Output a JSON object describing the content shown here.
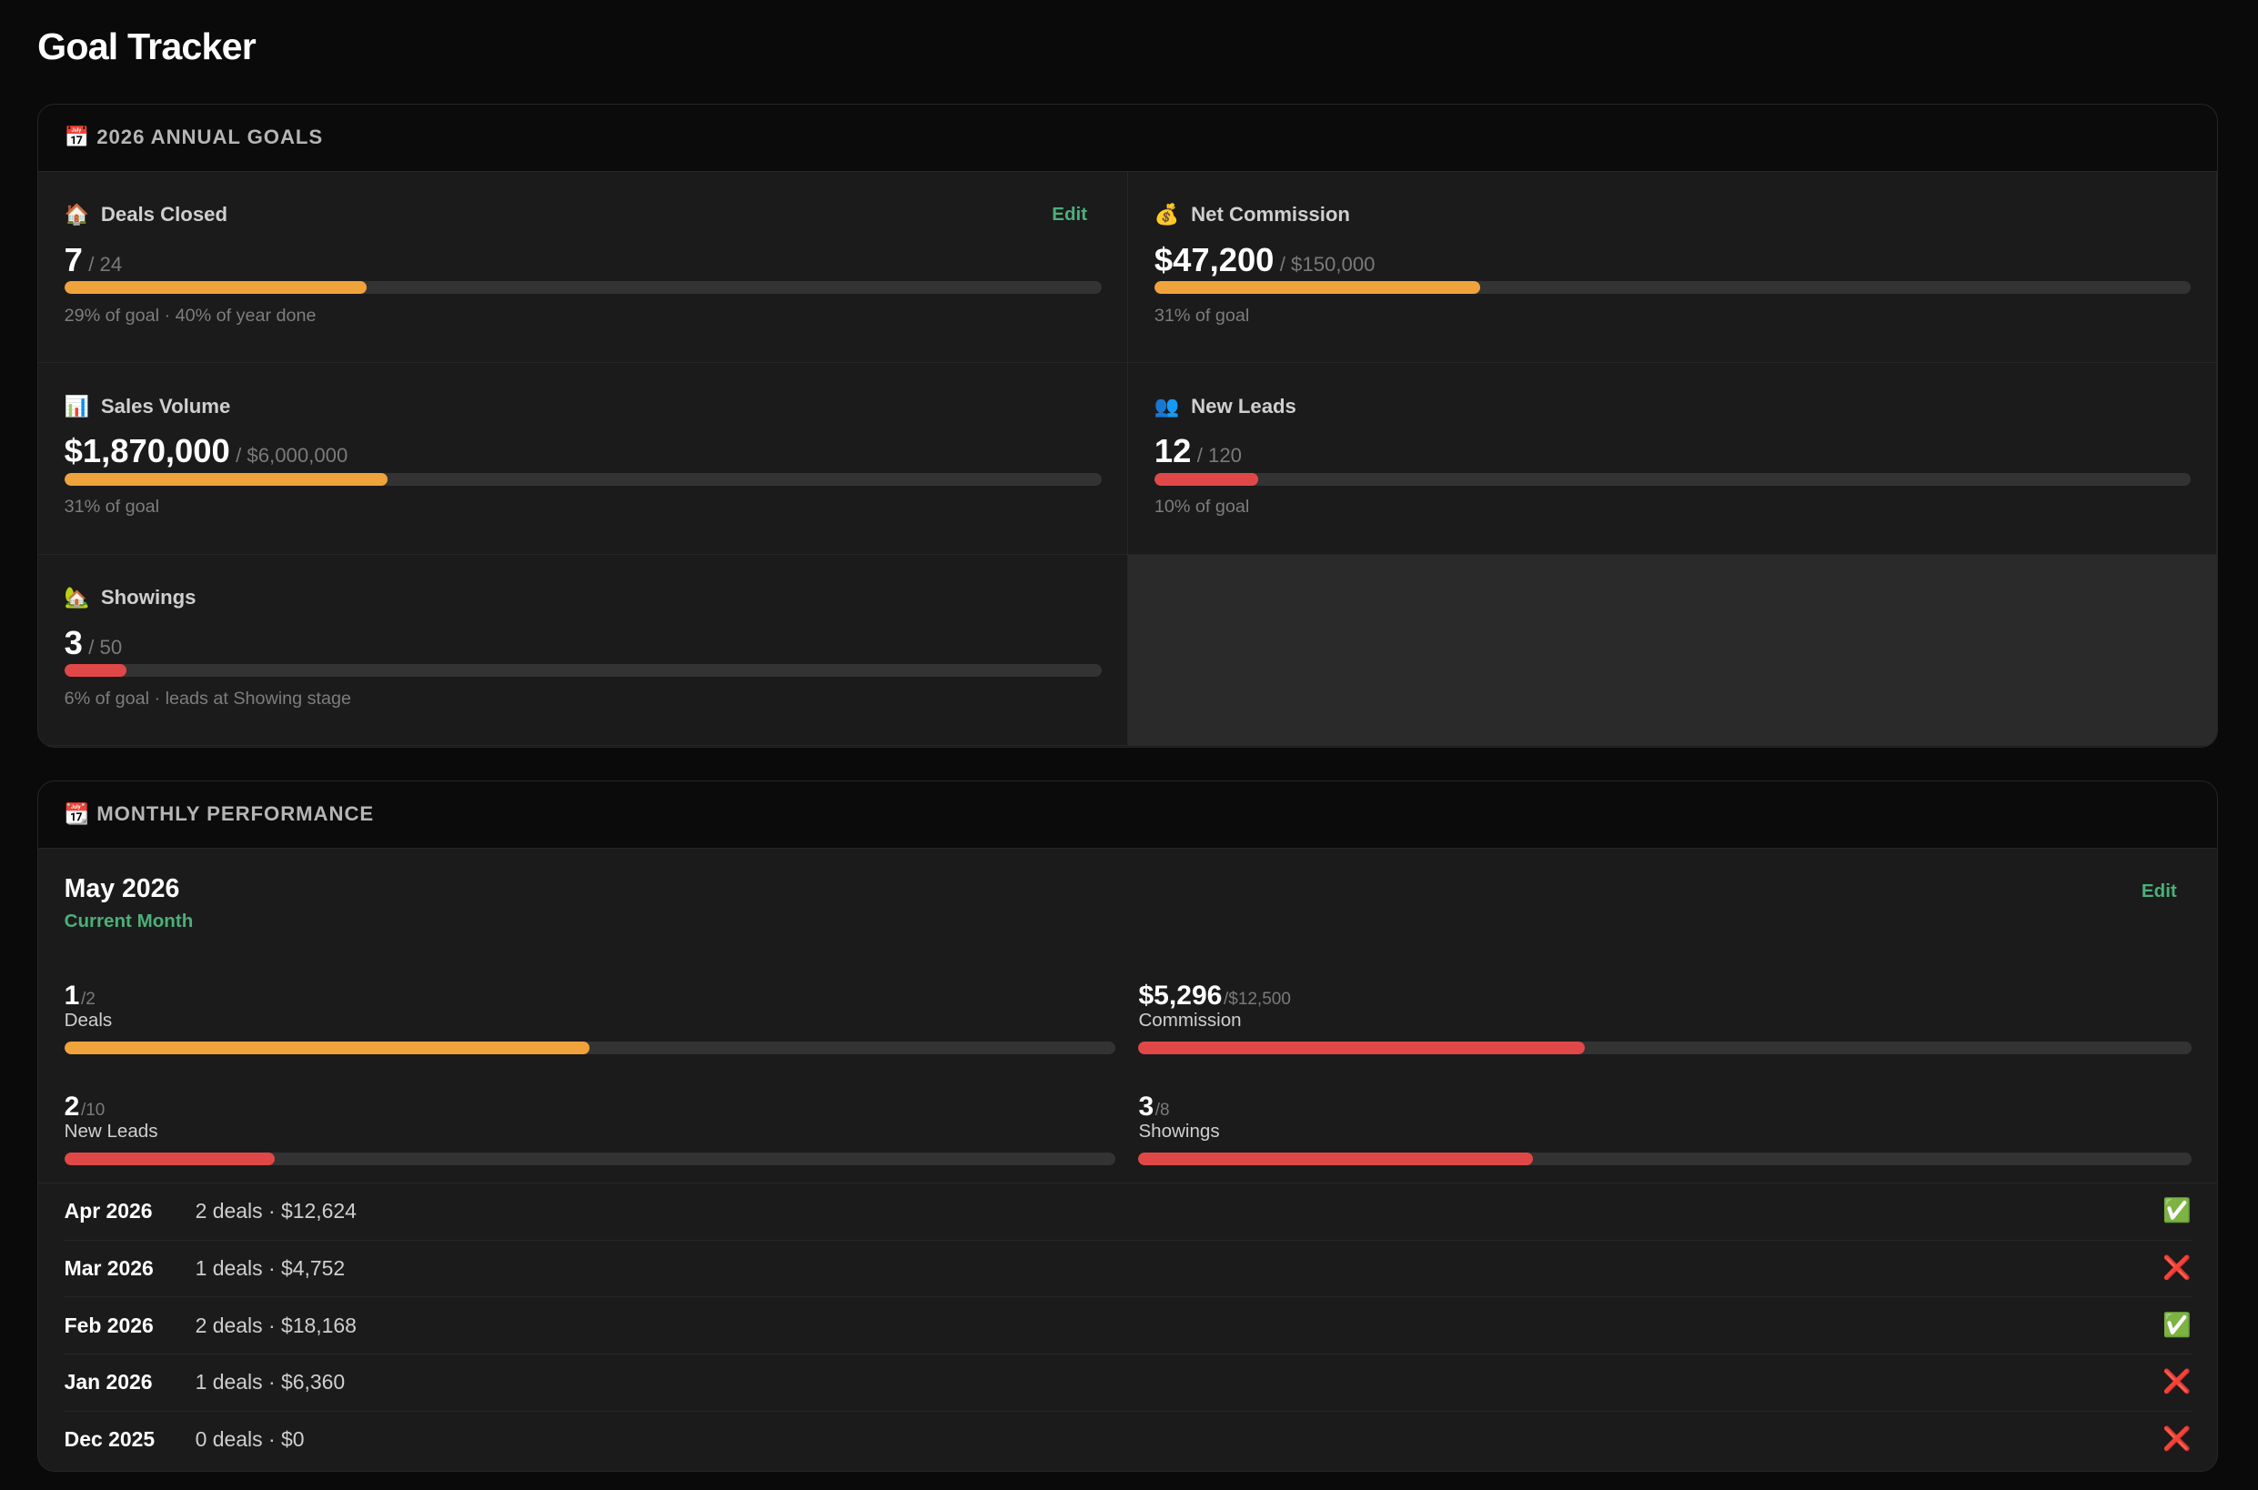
{
  "title": "Goal Tracker",
  "annual": {
    "heading": "📅 2026 ANNUAL GOALS",
    "edit": "Edit",
    "goals": [
      {
        "icon": "🏠",
        "name": "Deals Closed",
        "current": 7,
        "target": 24,
        "target_label": "/ 24",
        "note": "29% of goal · 40% of year done",
        "color": "#f0a33a"
      },
      {
        "icon": "💰",
        "name": "Net Commission",
        "current": 47200,
        "current_label": "$47,200",
        "target": 150000,
        "target_label": "/ $150,000",
        "note": "31% of goal",
        "color": "#f0a33a"
      },
      {
        "icon": "📊",
        "name": "Sales Volume",
        "current": 1870000,
        "current_label": "$1,870,000",
        "target": 6000000,
        "target_label": "/ $6,000,000",
        "note": "31% of goal",
        "color": "#f0a33a"
      },
      {
        "icon": "👥",
        "name": "New Leads",
        "current": 12,
        "target": 120,
        "target_label": "/ 120",
        "note": "10% of goal",
        "color": "#e04848"
      },
      {
        "icon": "🏡",
        "name": "Showings",
        "current": 3,
        "target": 50,
        "target_label": "/ 50",
        "note": "6% of goal · leads at Showing stage",
        "color": "#e04848"
      }
    ]
  },
  "monthly": {
    "heading": "📆 MONTHLY PERFORMANCE",
    "month": "May 2026",
    "status": "Current Month",
    "edit": "Edit",
    "stats": [
      {
        "current": 1,
        "target": 2,
        "target_label": "/2",
        "name": "Deals",
        "color": "#f0a33a"
      },
      {
        "current": 5296,
        "current_label": "$5,296",
        "target": 12500,
        "target_label": "/$12,500",
        "name": "Commission",
        "color": "#e04848"
      },
      {
        "current": 2,
        "target": 10,
        "target_label": "/10",
        "name": "New Leads",
        "color": "#e04848"
      },
      {
        "current": 3,
        "target": 8,
        "target_label": "/8",
        "name": "Showings",
        "color": "#e04848"
      }
    ],
    "history": [
      {
        "month": "Apr 2026",
        "summary": "2 deals · $12,624",
        "status": "✅"
      },
      {
        "month": "Mar 2026",
        "summary": "1 deals · $4,752",
        "status": "❌"
      },
      {
        "month": "Feb 2026",
        "summary": "2 deals · $18,168",
        "status": "✅"
      },
      {
        "month": "Jan 2026",
        "summary": "1 deals · $6,360",
        "status": "❌"
      },
      {
        "month": "Dec 2025",
        "summary": "0 deals · $0",
        "status": "❌"
      }
    ]
  }
}
